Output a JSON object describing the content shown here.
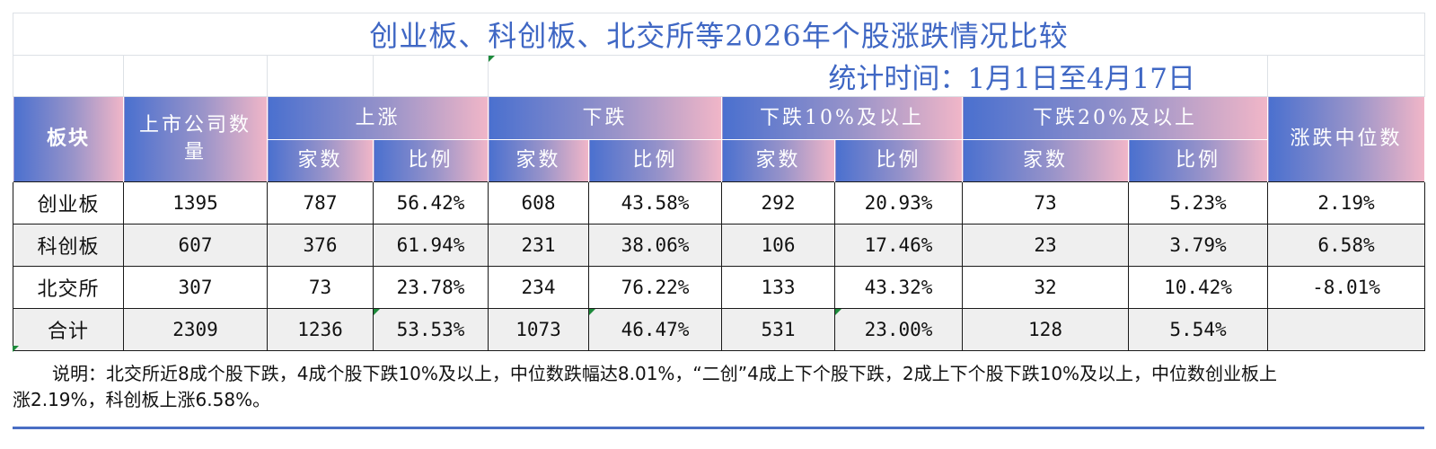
{
  "title": "创业板、科创板、北交所等2026年个股涨跌情况比较",
  "subtitle": "统计时间：1月1日至4月17日",
  "headers": {
    "board": "板块",
    "listed": "上市公司数量",
    "up": "上涨",
    "down": "下跌",
    "down10": "下跌10%及以上",
    "down20": "下跌20%及以上",
    "median": "涨跌中位数",
    "count": "家数",
    "ratio": "比例"
  },
  "rows": [
    {
      "name": "创业板",
      "listed": "1395",
      "up_n": "787",
      "up_r": "56.42%",
      "dn_n": "608",
      "dn_r": "43.58%",
      "d10_n": "292",
      "d10_r": "20.93%",
      "d20_n": "73",
      "d20_r": "5.23%",
      "median": "2.19%"
    },
    {
      "name": "科创板",
      "listed": "607",
      "up_n": "376",
      "up_r": "61.94%",
      "dn_n": "231",
      "dn_r": "38.06%",
      "d10_n": "106",
      "d10_r": "17.46%",
      "d20_n": "23",
      "d20_r": "3.79%",
      "median": "6.58%"
    },
    {
      "name": "北交所",
      "listed": "307",
      "up_n": "73",
      "up_r": "23.78%",
      "dn_n": "234",
      "dn_r": "76.22%",
      "d10_n": "133",
      "d10_r": "43.32%",
      "d20_n": "32",
      "d20_r": "10.42%",
      "median": "-8.01%"
    },
    {
      "name": "合计",
      "listed": "2309",
      "up_n": "1236",
      "up_r": "53.53%",
      "dn_n": "1073",
      "dn_r": "46.47%",
      "d10_n": "531",
      "d10_r": "23.00%",
      "d20_n": "128",
      "d20_r": "5.54%",
      "median": ""
    }
  ],
  "note": "说明：北交所近8成个股下跌，4成个股下跌10%及以上，中位数跌幅达8.01%，“二创”4成上下个股下跌，2成上下个股下跌10%及以上，中位数创业板上涨2.19%，科创板上涨6.58%。",
  "colors": {
    "accent": "#4a70cf",
    "pink": "#f1b6c8",
    "title": "#3f67c4",
    "mark": "#1d8a3b"
  }
}
